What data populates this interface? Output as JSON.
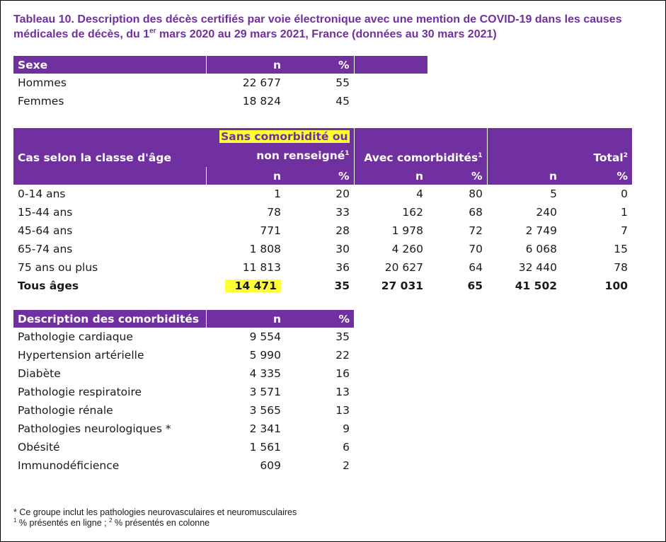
{
  "title": {
    "part1": "Tableau 10. Description des décès certifiés par voie électronique avec une mention de COVID-19 dans les causes médicales de décès, du 1",
    "sup": "er",
    "part2": " mars 2020 au 29 mars 2021, France (données au 30 mars 2021)"
  },
  "sexe": {
    "headers": [
      "Sexe",
      "n",
      "%"
    ],
    "rows": [
      {
        "label": "Hommes",
        "n": "22 677",
        "pct": "55"
      },
      {
        "label": "Femmes",
        "n": "18 824",
        "pct": "45"
      }
    ]
  },
  "age": {
    "header_row_label": "Cas selon la classe d'âge",
    "group1": {
      "line1": "Sans comorbidité ou",
      "line2": "non renseigné",
      "sup": "1"
    },
    "group2": {
      "label": "Avec comorbidités",
      "sup": "1"
    },
    "group3": {
      "label": "Total",
      "sup": "2"
    },
    "sub_n": "n",
    "sub_pct": "%",
    "rows": [
      {
        "label": "0-14 ans",
        "v": [
          "1",
          "20",
          "4",
          "80",
          "5",
          "0"
        ]
      },
      {
        "label": "15-44 ans",
        "v": [
          "78",
          "33",
          "162",
          "68",
          "240",
          "1"
        ]
      },
      {
        "label": "45-64 ans",
        "v": [
          "771",
          "28",
          "1 978",
          "72",
          "2 749",
          "7"
        ]
      },
      {
        "label": "65-74 ans",
        "v": [
          "1 808",
          "30",
          "4 260",
          "70",
          "6 068",
          "15"
        ]
      },
      {
        "label": "75 ans ou plus",
        "v": [
          "11 813",
          "36",
          "20 627",
          "64",
          "32 440",
          "78"
        ]
      }
    ],
    "total": {
      "label": "Tous âges",
      "v": [
        "14 471",
        "35",
        "27 031",
        "65",
        "41 502",
        "100"
      ]
    }
  },
  "comorb": {
    "headers": [
      "Description des comorbidités",
      "n",
      "%"
    ],
    "rows": [
      {
        "label": "Pathologie cardiaque",
        "n": "9 554",
        "pct": "35"
      },
      {
        "label": "Hypertension artérielle",
        "n": "5 990",
        "pct": "22"
      },
      {
        "label": "Diabète",
        "n": "4 335",
        "pct": "16"
      },
      {
        "label": "Pathologie respiratoire",
        "n": "3 571",
        "pct": "13"
      },
      {
        "label": "Pathologie rénale",
        "n": "3 565",
        "pct": "13"
      },
      {
        "label": "Pathologies neurologiques *",
        "n": "2 341",
        "pct": "9"
      },
      {
        "label": "Obésité",
        "n": "1 561",
        "pct": "6"
      },
      {
        "label": "Immunodéficience",
        "n": "609",
        "pct": "2"
      }
    ]
  },
  "notes": {
    "note1": "* Ce groupe inclut les pathologies neurovasculaires et neuromusculaires",
    "note2_sup1": "1",
    "note2_a": " % présentés en ligne ; ",
    "note2_sup2": "2",
    "note2_b": " % présentés en colonne"
  },
  "colors": {
    "header_bg": "#7030a0",
    "title": "#7030a0",
    "highlight": "#ffff33"
  }
}
